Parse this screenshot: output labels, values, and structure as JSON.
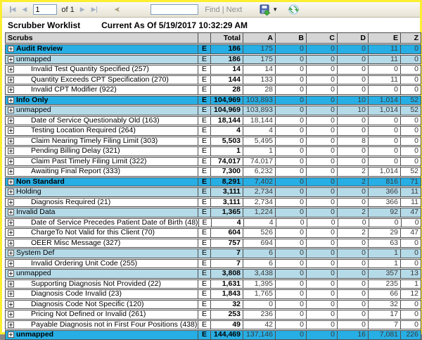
{
  "colors": {
    "frame_border": "#fcee30",
    "group_row": "#27aee4",
    "subgroup_row": "#b5dae8",
    "header_row": "#d5d5d5"
  },
  "toolbar": {
    "page_number": "1",
    "page_count_label": "of 1",
    "search_value": "",
    "find_label": "Find",
    "separator": "|",
    "next_label": "Next",
    "icons": {
      "first": "◀",
      "prev": "◀",
      "next": "▶",
      "last": "▶",
      "back": "➤",
      "export_caret": "▼"
    }
  },
  "report": {
    "title": "Scrubber Worklist",
    "as_of": "Current As Of 5/19/2017 10:32:29 AM"
  },
  "table": {
    "columns": [
      "Scrubs",
      "",
      "Total",
      "A",
      "B",
      "C",
      "D",
      "E",
      "Z"
    ],
    "rows": [
      {
        "level": 1,
        "label": "Audit Review",
        "flag": "E",
        "values": [
          "186",
          "175",
          "0",
          "0",
          "0",
          "11",
          "0"
        ]
      },
      {
        "level": 2,
        "label": "unmapped",
        "flag": "E",
        "values": [
          "186",
          "175",
          "0",
          "0",
          "0",
          "11",
          "0"
        ]
      },
      {
        "level": 3,
        "label": "Invalid Test Quantity Specified (257)",
        "flag": "E",
        "values": [
          "14",
          "14",
          "0",
          "0",
          "0",
          "0",
          "0"
        ]
      },
      {
        "level": 3,
        "label": "Quantity Exceeds CPT Specification (270)",
        "flag": "E",
        "values": [
          "144",
          "133",
          "0",
          "0",
          "0",
          "11",
          "0"
        ]
      },
      {
        "level": 3,
        "label": "Invalid CPT Modifier (922)",
        "flag": "E",
        "values": [
          "28",
          "28",
          "0",
          "0",
          "0",
          "0",
          "0"
        ]
      },
      {
        "level": 1,
        "label": "Info Only",
        "flag": "E",
        "values": [
          "104,969",
          "103,893",
          "0",
          "0",
          "10",
          "1,014",
          "52"
        ]
      },
      {
        "level": 2,
        "label": "unmapped",
        "flag": "E",
        "values": [
          "104,969",
          "103,893",
          "0",
          "0",
          "10",
          "1,014",
          "52"
        ]
      },
      {
        "level": 3,
        "label": "Date of Service Questionably Old (163)",
        "flag": "E",
        "values": [
          "18,144",
          "18,144",
          "0",
          "0",
          "0",
          "0",
          "0"
        ]
      },
      {
        "level": 3,
        "label": "Testing Location Required (264)",
        "flag": "E",
        "values": [
          "4",
          "4",
          "0",
          "0",
          "0",
          "0",
          "0"
        ]
      },
      {
        "level": 3,
        "label": "Claim Nearing Timely Filing Limit (303)",
        "flag": "E",
        "values": [
          "5,503",
          "5,495",
          "0",
          "0",
          "8",
          "0",
          "0"
        ]
      },
      {
        "level": 3,
        "label": "Pending Billing Delay (321)",
        "flag": "E",
        "values": [
          "1",
          "1",
          "0",
          "0",
          "0",
          "0",
          "0"
        ]
      },
      {
        "level": 3,
        "label": "Claim Past Timely Filing Limit (322)",
        "flag": "E",
        "values": [
          "74,017",
          "74,017",
          "0",
          "0",
          "0",
          "0",
          "0"
        ]
      },
      {
        "level": 3,
        "label": "Awaiting Final Report (333)",
        "flag": "E",
        "values": [
          "7,300",
          "6,232",
          "0",
          "0",
          "2",
          "1,014",
          "52"
        ]
      },
      {
        "level": 1,
        "label": "Non Standard",
        "flag": "E",
        "values": [
          "8,291",
          "7,402",
          "0",
          "0",
          "2",
          "816",
          "71"
        ]
      },
      {
        "level": 2,
        "label": "Holding",
        "flag": "E",
        "values": [
          "3,111",
          "2,734",
          "0",
          "0",
          "0",
          "366",
          "11"
        ]
      },
      {
        "level": 3,
        "label": "Diagnosis Required (21)",
        "flag": "E",
        "values": [
          "3,111",
          "2,734",
          "0",
          "0",
          "0",
          "366",
          "11"
        ]
      },
      {
        "level": 2,
        "label": "Invalid Data",
        "flag": "E",
        "values": [
          "1,365",
          "1,224",
          "0",
          "0",
          "2",
          "92",
          "47"
        ]
      },
      {
        "level": 3,
        "label": "Date of Service Precedes Patient Date of Birth (48)",
        "flag": "E",
        "values": [
          "4",
          "4",
          "0",
          "0",
          "0",
          "0",
          "0"
        ]
      },
      {
        "level": 3,
        "label": "ChargeTo Not Valid for this Client (70)",
        "flag": "E",
        "values": [
          "604",
          "526",
          "0",
          "0",
          "2",
          "29",
          "47"
        ]
      },
      {
        "level": 3,
        "label": "OEER Misc Message (327)",
        "flag": "E",
        "values": [
          "757",
          "694",
          "0",
          "0",
          "0",
          "63",
          "0"
        ]
      },
      {
        "level": 2,
        "label": "System Def",
        "flag": "E",
        "values": [
          "7",
          "6",
          "0",
          "0",
          "0",
          "1",
          "0"
        ]
      },
      {
        "level": 3,
        "label": "Invalid Ordering Unit Code (255)",
        "flag": "E",
        "values": [
          "7",
          "6",
          "0",
          "0",
          "0",
          "1",
          "0"
        ]
      },
      {
        "level": 2,
        "label": "unmapped",
        "flag": "E",
        "values": [
          "3,808",
          "3,438",
          "0",
          "0",
          "0",
          "357",
          "13"
        ]
      },
      {
        "level": 3,
        "label": "Supporting Diagnosis Not Provided (22)",
        "flag": "E",
        "values": [
          "1,631",
          "1,395",
          "0",
          "0",
          "0",
          "235",
          "1"
        ]
      },
      {
        "level": 3,
        "label": "Diagnosis Code Invalid (23)",
        "flag": "E",
        "values": [
          "1,843",
          "1,765",
          "0",
          "0",
          "0",
          "66",
          "12"
        ]
      },
      {
        "level": 3,
        "label": "Diagnosis Code Not Specific (120)",
        "flag": "E",
        "values": [
          "32",
          "0",
          "0",
          "0",
          "0",
          "32",
          "0"
        ]
      },
      {
        "level": 3,
        "label": "Pricing Not Defined or Invalid (261)",
        "flag": "E",
        "values": [
          "253",
          "236",
          "0",
          "0",
          "0",
          "17",
          "0"
        ]
      },
      {
        "level": 3,
        "label": "Payable Diagnosis not in First Four Positions (438)",
        "flag": "E",
        "values": [
          "49",
          "42",
          "0",
          "0",
          "0",
          "7",
          "0"
        ]
      },
      {
        "level": 1,
        "label": "unmapped",
        "flag": "E",
        "values": [
          "144,469",
          "137,146",
          "0",
          "0",
          "16",
          "7,081",
          "226"
        ]
      }
    ]
  }
}
